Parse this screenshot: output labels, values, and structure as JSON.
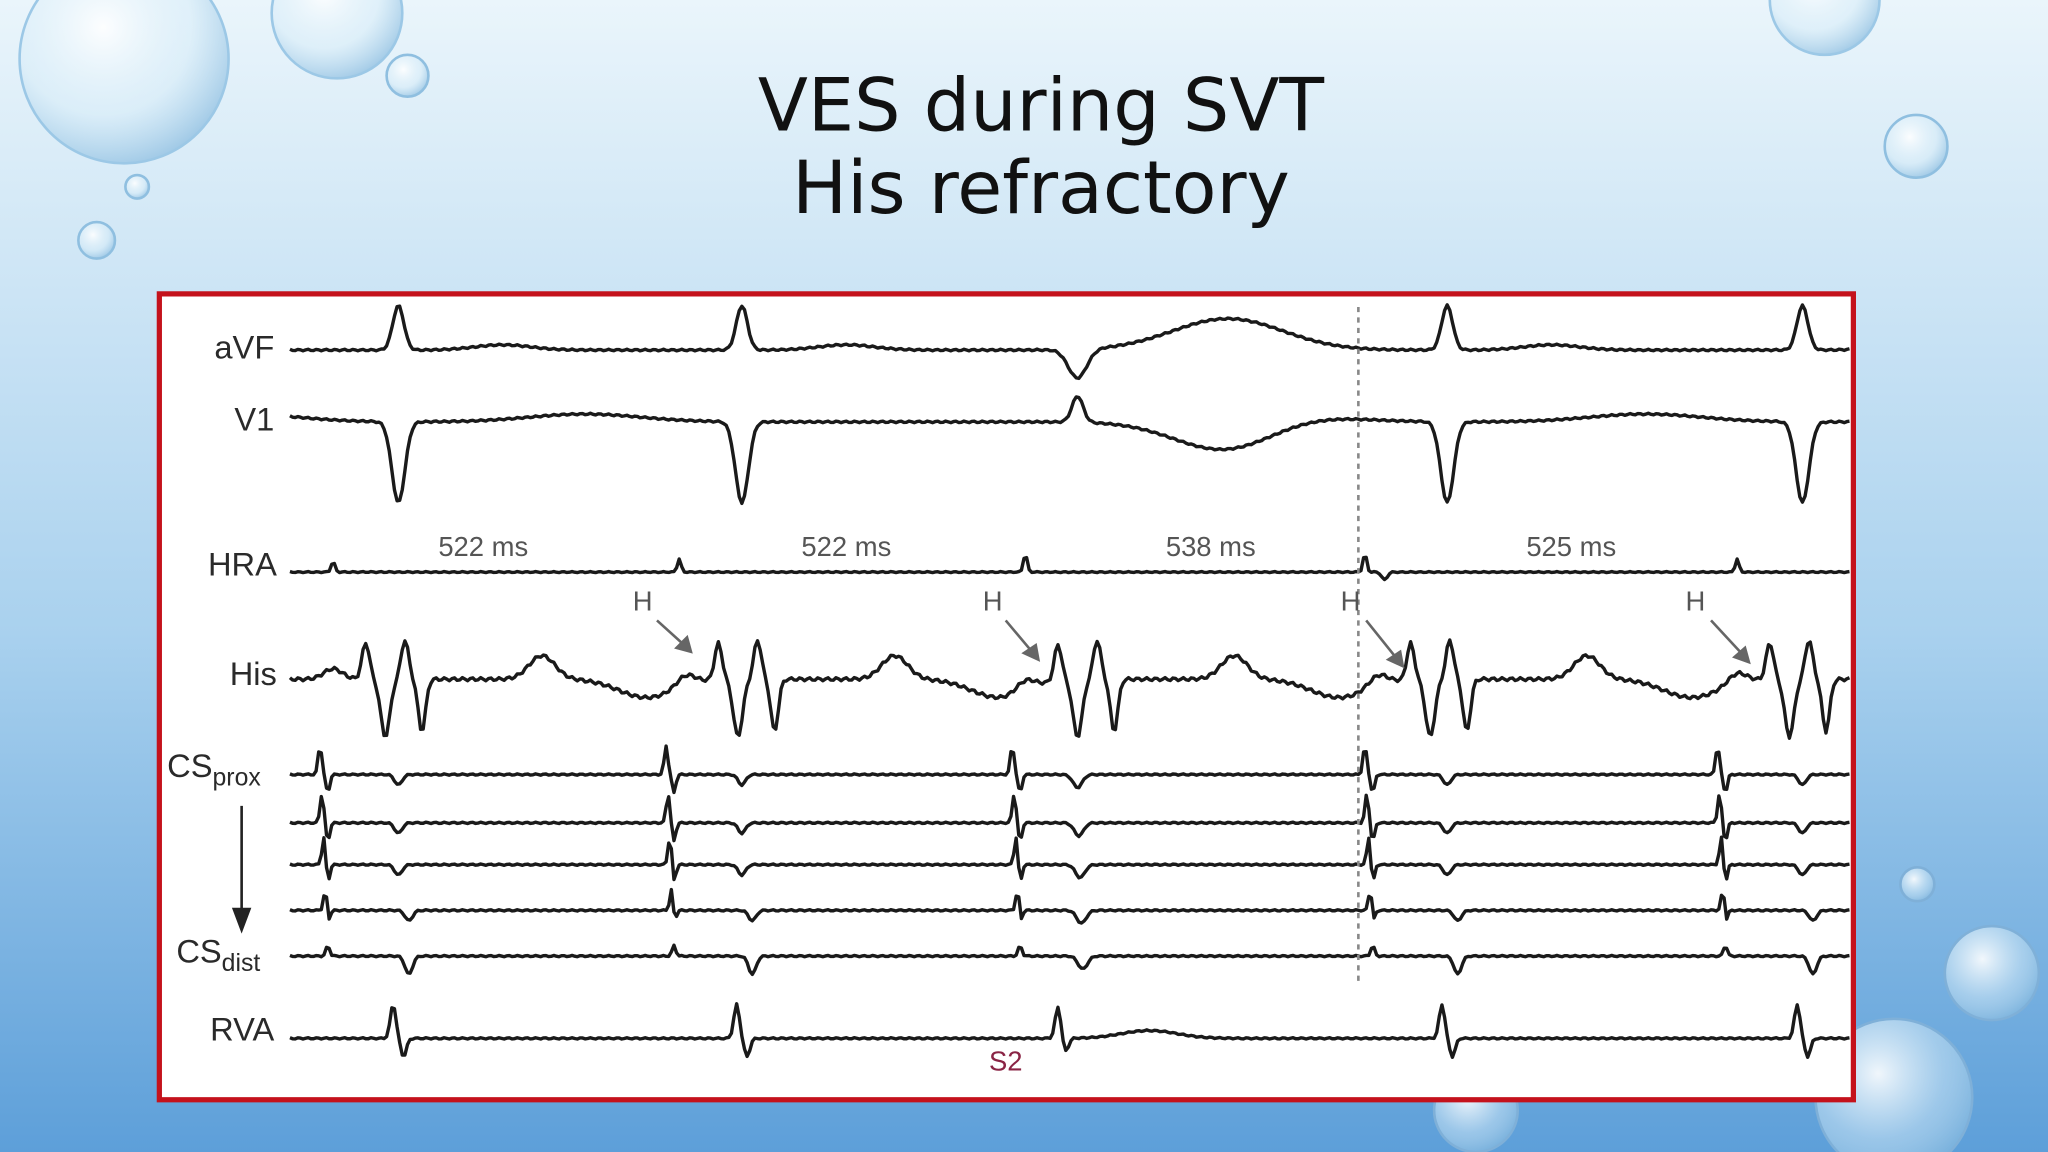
{
  "slide": {
    "title": [
      "VES during SVT",
      "His refractory"
    ]
  },
  "tracing": {
    "leads": {
      "avf": "aVF",
      "v1": "V1",
      "hra": "HRA",
      "his": "His",
      "rva": "RVA"
    },
    "cs_prox": {
      "base": "CS",
      "sub": "prox"
    },
    "cs_dist": {
      "base": "CS",
      "sub": "dist"
    },
    "intervals": [
      "522 ms",
      "522 ms",
      "538 ms",
      "525 ms"
    ],
    "his_markers": [
      "H",
      "H",
      "H",
      "H"
    ],
    "stimulus": "S2"
  }
}
